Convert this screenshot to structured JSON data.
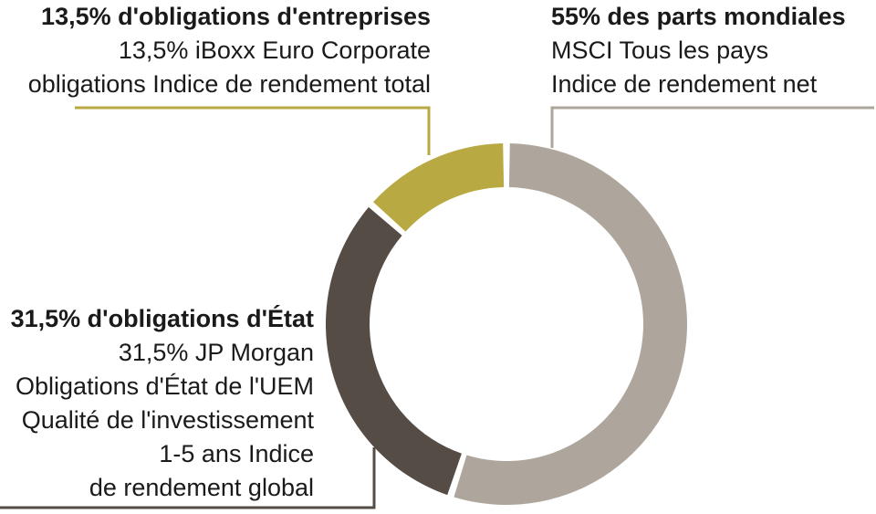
{
  "chart_data": {
    "type": "pie",
    "variant": "donut",
    "title": "",
    "categories": [
      "55% des parts mondiales",
      "31,5% d'obligations d'État",
      "13,5% d'obligations d'entreprises"
    ],
    "values": [
      55,
      31.5,
      13.5
    ],
    "colors": [
      "#aea69c",
      "#564c46",
      "#b9a942"
    ],
    "legend": "callout labels",
    "labels": [
      {
        "slice": "55% des parts mondiales",
        "title": "55% des parts mondiales",
        "lines": [
          "MSCI Tous les pays",
          "Indice de rendement net"
        ]
      },
      {
        "slice": "31,5% d'obligations d'État",
        "title": "31,5% d'obligations d'État",
        "lines": [
          "31,5% JP Morgan",
          "Obligations d'État de l'UEM",
          "Qualité de l'investissement",
          "1-5 ans Indice",
          "de rendement global"
        ]
      },
      {
        "slice": "13,5% d'obligations d'entreprises",
        "title": "13,5% d'obligations d'entreprises",
        "lines": [
          "13,5% iBoxx Euro Corporate",
          "obligations Indice de rendement total"
        ]
      }
    ]
  }
}
